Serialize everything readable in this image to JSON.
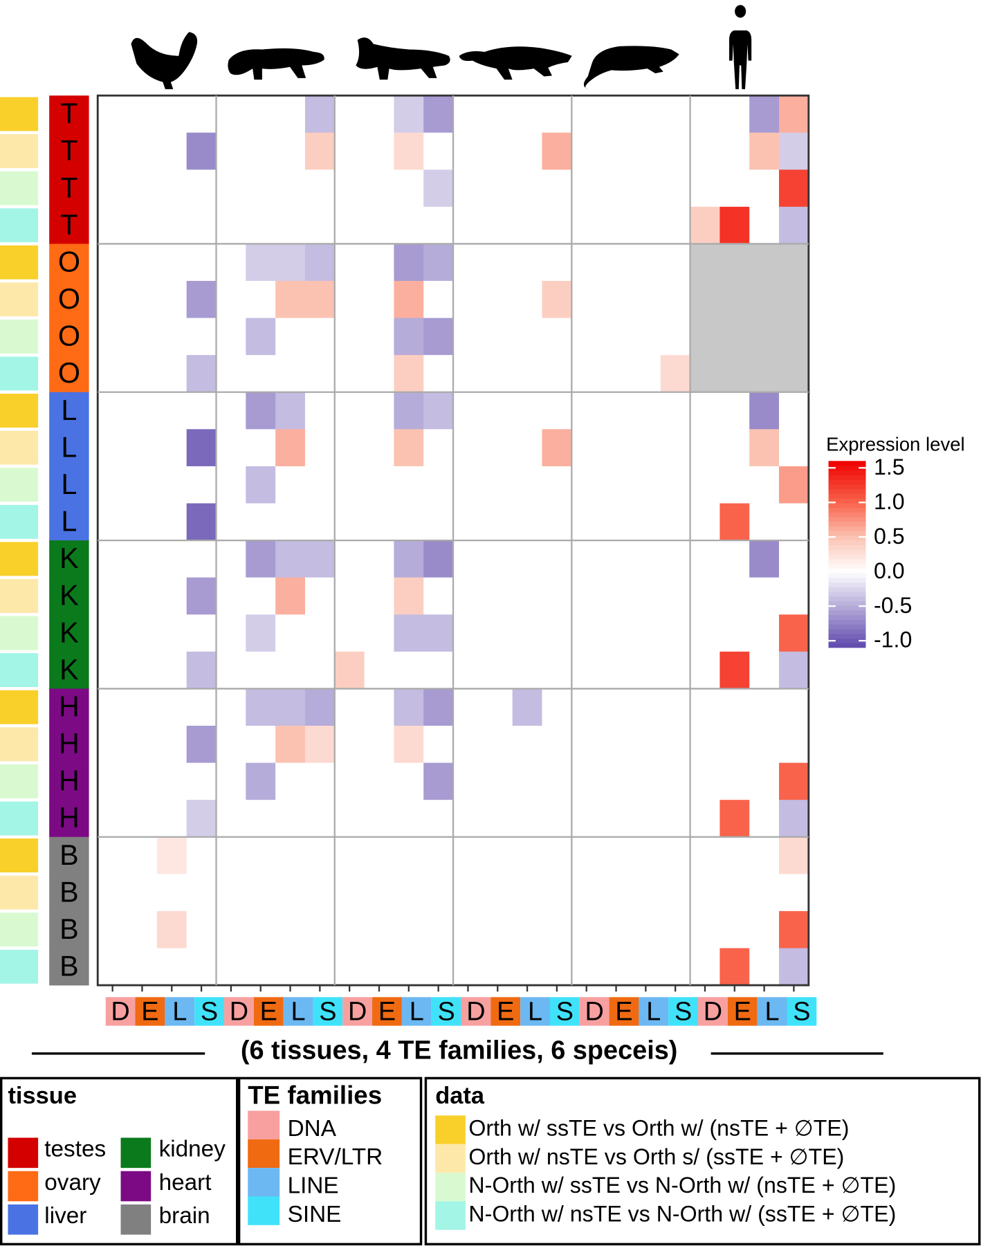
{
  "chart_data": {
    "type": "heatmap",
    "xlabel": "(6 tissues, 4 TE families, 6 speceis)",
    "row_labels": [
      "T",
      "T",
      "T",
      "T",
      "O",
      "O",
      "O",
      "O",
      "L",
      "L",
      "L",
      "L",
      "K",
      "K",
      "K",
      "K",
      "H",
      "H",
      "H",
      "H",
      "B",
      "B",
      "B",
      "B"
    ],
    "column_labels": [
      "D",
      "E",
      "L",
      "S",
      "D",
      "E",
      "L",
      "S",
      "D",
      "E",
      "L",
      "S",
      "D",
      "E",
      "L",
      "S",
      "D",
      "E",
      "L",
      "S",
      "D",
      "E",
      "L",
      "S"
    ],
    "values": [
      [
        0,
        0,
        0,
        0,
        0,
        0,
        0,
        -0.4,
        0,
        0,
        -0.3,
        -0.6,
        0,
        0,
        0,
        0,
        0,
        0,
        0,
        0,
        0,
        0,
        -0.6,
        0.6
      ],
      [
        0,
        0,
        0,
        -0.7,
        0,
        0,
        0,
        0.4,
        0,
        0,
        0.3,
        0,
        0,
        0,
        0,
        0.6,
        0,
        0,
        0,
        0,
        0,
        0,
        0.5,
        -0.3
      ],
      [
        0,
        0,
        0,
        0,
        0,
        0,
        0,
        0,
        0,
        0,
        0,
        -0.3,
        0,
        0,
        0,
        0,
        0,
        0,
        0,
        0,
        0,
        0,
        0,
        1.2
      ],
      [
        0,
        0,
        0,
        0,
        0,
        0,
        0,
        0,
        0,
        0,
        0,
        0,
        0,
        0,
        0,
        0,
        0,
        0,
        0,
        0,
        0.4,
        1.3,
        0,
        -0.4
      ],
      [
        0,
        0,
        0,
        0,
        0,
        -0.3,
        -0.3,
        -0.4,
        0,
        0,
        -0.6,
        -0.5,
        0,
        0,
        0,
        0,
        0,
        0,
        0,
        0,
        null,
        null,
        null,
        null
      ],
      [
        0,
        0,
        0,
        -0.6,
        0,
        0,
        0.5,
        0.5,
        0,
        0,
        0.6,
        0,
        0,
        0,
        0,
        0.4,
        0,
        0,
        0,
        0,
        null,
        null,
        null,
        null
      ],
      [
        0,
        0,
        0,
        0,
        0,
        -0.4,
        0,
        0,
        0,
        0,
        -0.5,
        -0.6,
        0,
        0,
        0,
        0,
        0,
        0,
        0,
        0,
        null,
        null,
        null,
        null
      ],
      [
        0,
        0,
        0,
        -0.4,
        0,
        0,
        0,
        0,
        0,
        0,
        0.4,
        0,
        0,
        0,
        0,
        0,
        0,
        0,
        0,
        0.3,
        null,
        null,
        null,
        null
      ],
      [
        0,
        0,
        0,
        0,
        0,
        -0.6,
        -0.4,
        0,
        0,
        0,
        -0.5,
        -0.4,
        0,
        0,
        0,
        0,
        0,
        0,
        0,
        0,
        0,
        0,
        -0.7,
        0
      ],
      [
        0,
        0,
        0,
        -0.9,
        0,
        0,
        0.6,
        0,
        0,
        0,
        0.5,
        0,
        0,
        0,
        0,
        0.6,
        0,
        0,
        0,
        0,
        0,
        0,
        0.5,
        0
      ],
      [
        0,
        0,
        0,
        0,
        0,
        -0.4,
        0,
        0,
        0,
        0,
        0,
        0,
        0,
        0,
        0,
        0,
        0,
        0,
        0,
        0,
        0,
        0,
        0,
        0.7
      ],
      [
        0,
        0,
        0,
        -0.9,
        0,
        0,
        0,
        0,
        0,
        0,
        0,
        0,
        0,
        0,
        0,
        0,
        0,
        0,
        0,
        0,
        0,
        1,
        0,
        0
      ],
      [
        0,
        0,
        0,
        0,
        0,
        -0.6,
        -0.4,
        -0.4,
        0,
        0,
        -0.5,
        -0.7,
        0,
        0,
        0,
        0,
        0,
        0,
        0,
        0,
        0,
        0,
        -0.7,
        0
      ],
      [
        0,
        0,
        0,
        -0.6,
        0,
        0,
        0.6,
        0,
        0,
        0,
        0.4,
        0,
        0,
        0,
        0,
        0,
        0,
        0,
        0,
        0,
        0,
        0,
        0,
        0
      ],
      [
        0,
        0,
        0,
        0,
        0,
        -0.3,
        0,
        0,
        0,
        0,
        -0.4,
        -0.4,
        0,
        0,
        0,
        0,
        0,
        0,
        0,
        0,
        0,
        0,
        0,
        1
      ],
      [
        0,
        0,
        0,
        -0.4,
        0,
        0,
        0,
        0,
        0.4,
        0,
        0,
        0,
        0,
        0,
        0,
        0,
        0,
        0,
        0,
        0,
        0,
        1.2,
        0,
        -0.4
      ],
      [
        0,
        0,
        0,
        0,
        0,
        -0.4,
        -0.4,
        -0.5,
        0,
        0,
        -0.4,
        -0.6,
        0,
        0,
        -0.4,
        0,
        0,
        0,
        0,
        0,
        0,
        0,
        0,
        0
      ],
      [
        0,
        0,
        0,
        -0.6,
        0,
        0,
        0.5,
        0.3,
        0,
        0,
        0.3,
        0,
        0,
        0,
        0,
        0,
        0,
        0,
        0,
        0,
        0,
        0,
        0,
        0
      ],
      [
        0,
        0,
        0,
        0,
        0,
        -0.5,
        0,
        0,
        0,
        0,
        0,
        -0.6,
        0,
        0,
        0,
        0,
        0,
        0,
        0,
        0,
        0,
        0,
        0,
        1
      ],
      [
        0,
        0,
        0,
        -0.3,
        0,
        0,
        0,
        0,
        0,
        0,
        0,
        0,
        0,
        0,
        0,
        0,
        0,
        0,
        0,
        0,
        0,
        1,
        0,
        -0.4
      ],
      [
        0,
        0,
        0.2,
        0,
        0,
        0,
        0,
        0,
        0,
        0,
        0,
        0,
        0,
        0,
        0,
        0,
        0,
        0,
        0,
        0,
        0,
        0,
        0,
        0.3
      ],
      [
        0,
        0,
        0,
        0,
        0,
        0,
        0,
        0,
        0,
        0,
        0,
        0,
        0,
        0,
        0,
        0,
        0,
        0,
        0,
        0,
        0,
        0,
        0,
        0
      ],
      [
        0,
        0,
        0.3,
        0,
        0,
        0,
        0,
        0,
        0,
        0,
        0,
        0,
        0,
        0,
        0,
        0,
        0,
        0,
        0,
        0,
        0,
        0,
        0,
        1
      ],
      [
        0,
        0,
        0,
        0,
        0,
        0,
        0,
        0,
        0,
        0,
        0,
        0,
        0,
        0,
        0,
        0,
        0,
        0,
        0,
        0,
        0,
        1,
        0,
        -0.4
      ]
    ],
    "na_color": "#c8c8c8",
    "zlim": [
      -1.1,
      1.6
    ],
    "colorscale": [
      [
        -1.1,
        "#5e48ac"
      ],
      [
        0,
        "#ffffff"
      ],
      [
        0.5,
        "#fbc2b2"
      ],
      [
        1,
        "#f9634c"
      ],
      [
        1.6,
        "#ee0000"
      ]
    ],
    "colorbar": {
      "title": "Expression level",
      "ticks": [
        1.5,
        {
          "value": 1,
          "label": "1.0"
        },
        0.5,
        {
          "value": 0,
          "label": "0.0"
        },
        -0.5,
        {
          "value": -1,
          "label": "-1.0"
        }
      ]
    },
    "tissues": {
      "title": "tissue",
      "items": [
        {
          "name": "testes",
          "color": "#d40000"
        },
        {
          "name": "ovary",
          "color": "#ff6a14"
        },
        {
          "name": "liver",
          "color": "#4a72e2"
        },
        {
          "name": "kidney",
          "color": "#0b7a1c"
        },
        {
          "name": "heart",
          "color": "#7c0a84"
        },
        {
          "name": "brain",
          "color": "#808080"
        }
      ]
    },
    "te_families": {
      "title": "TE families",
      "items": [
        {
          "name": "DNA",
          "color": "#f8a0a0"
        },
        {
          "name": "ERV/LTR",
          "color": "#f06a12"
        },
        {
          "name": "LINE",
          "color": "#6cb8f2"
        },
        {
          "name": "SINE",
          "color": "#40e2fa"
        }
      ]
    },
    "data_types": {
      "title": "data",
      "items": [
        {
          "name": "Orth w/ ssTE vs Orth w/ (nsTE + ∅TE)",
          "color": "#f9cf2a"
        },
        {
          "name": "Orth w/ nsTE vs Orth s/ (ssTE + ∅TE)",
          "color": "#fde8aa"
        },
        {
          "name": "N-Orth w/ ssTE vs N-Orth w/ (nsTE + ∅TE)",
          "color": "#d9fad0"
        },
        {
          "name": "N-Orth w/ nsTE vs N-Orth w/ (ssTE + ∅TE)",
          "color": "#a3f5e6"
        }
      ]
    }
  }
}
